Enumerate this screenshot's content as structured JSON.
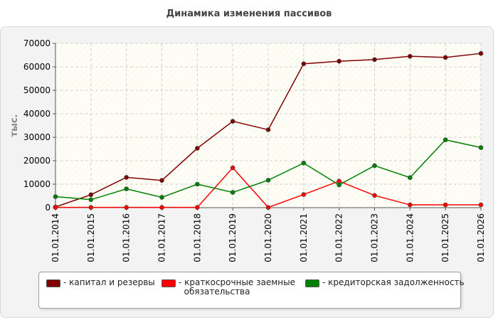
{
  "title": "Динамика изменения пассивов",
  "chart_data": {
    "type": "line",
    "title": "Динамика изменения пассивов",
    "xlabel": "",
    "ylabel": "тыс.",
    "ylim": [
      0,
      70000
    ],
    "yticks": [
      0,
      10000,
      20000,
      30000,
      40000,
      50000,
      60000,
      70000
    ],
    "grid": true,
    "legend_position": "bottom",
    "x": [
      "01.01.2014",
      "01.01.2015",
      "01.01.2016",
      "01.01.2017",
      "01.01.2018",
      "01.01.2019",
      "01.01.2020",
      "01.01.2021",
      "01.01.2022",
      "01.01.2023",
      "01.01.2024",
      "01.01.2025",
      "01.01.2026"
    ],
    "series": [
      {
        "name": "капитал и резервы",
        "color": "#800000",
        "values": [
          300,
          5500,
          12900,
          11600,
          25300,
          36800,
          33200,
          61300,
          62400,
          63100,
          64500,
          64000,
          65700
        ]
      },
      {
        "name": "краткосрочные заемные обязательства",
        "legend_lines": [
          "краткосрочные заемные",
          "обязательства"
        ],
        "color": "#ff0000",
        "values": [
          100,
          100,
          100,
          100,
          100,
          17000,
          100,
          5600,
          11300,
          5200,
          1200,
          1200,
          1200
        ]
      },
      {
        "name": "кредиторская задолженность",
        "color": "#008000",
        "values": [
          4700,
          3400,
          8000,
          4400,
          10000,
          6500,
          11700,
          19000,
          9700,
          17900,
          12800,
          28900,
          25600
        ]
      }
    ]
  }
}
